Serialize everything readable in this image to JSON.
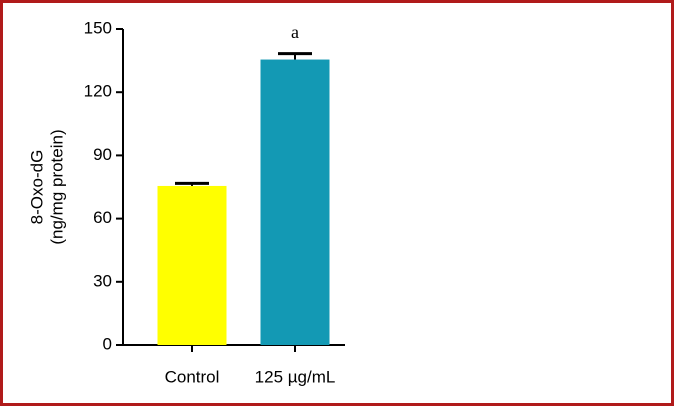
{
  "chart_data": {
    "type": "bar",
    "ylabel": [
      "8-Oxo-dG",
      "(ng/mg protein)"
    ],
    "categories": [
      "Control",
      "125 µg/mL"
    ],
    "values": [
      75.5,
      135.5
    ],
    "errors": [
      1.2,
      2.8
    ],
    "colors": [
      "#ffff00",
      "#1399b4"
    ],
    "annotations": [
      null,
      "a"
    ],
    "ylim": [
      0,
      150
    ],
    "yticks": [
      0,
      30,
      60,
      90,
      120,
      150
    ]
  }
}
